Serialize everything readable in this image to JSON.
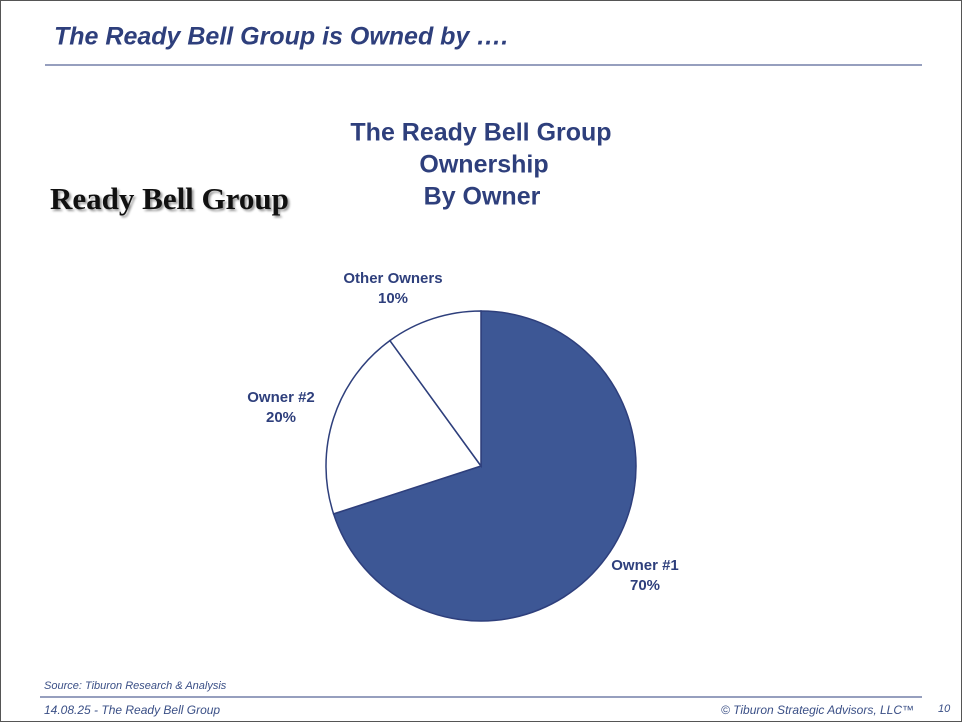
{
  "header": {
    "title": "The Ready Bell Group is Owned by …."
  },
  "logo": {
    "text": "Ready Bell Group"
  },
  "chart_data": {
    "type": "pie",
    "title": [
      "The Ready Bell Group",
      "Ownership",
      "By Owner"
    ],
    "categories": [
      "Owner #1",
      "Owner #2",
      "Other Owners"
    ],
    "values": [
      70,
      20,
      10
    ],
    "value_labels": [
      "70%",
      "20%",
      "10%"
    ],
    "colors": [
      "#3d5795",
      "#ffffff",
      "#ffffff"
    ]
  },
  "footer": {
    "source": "Source:  Tiburon Research & Analysis",
    "left": "14.08.25 - The Ready Bell Group",
    "right": "© Tiburon Strategic Advisors, LLC™",
    "page": "10"
  }
}
